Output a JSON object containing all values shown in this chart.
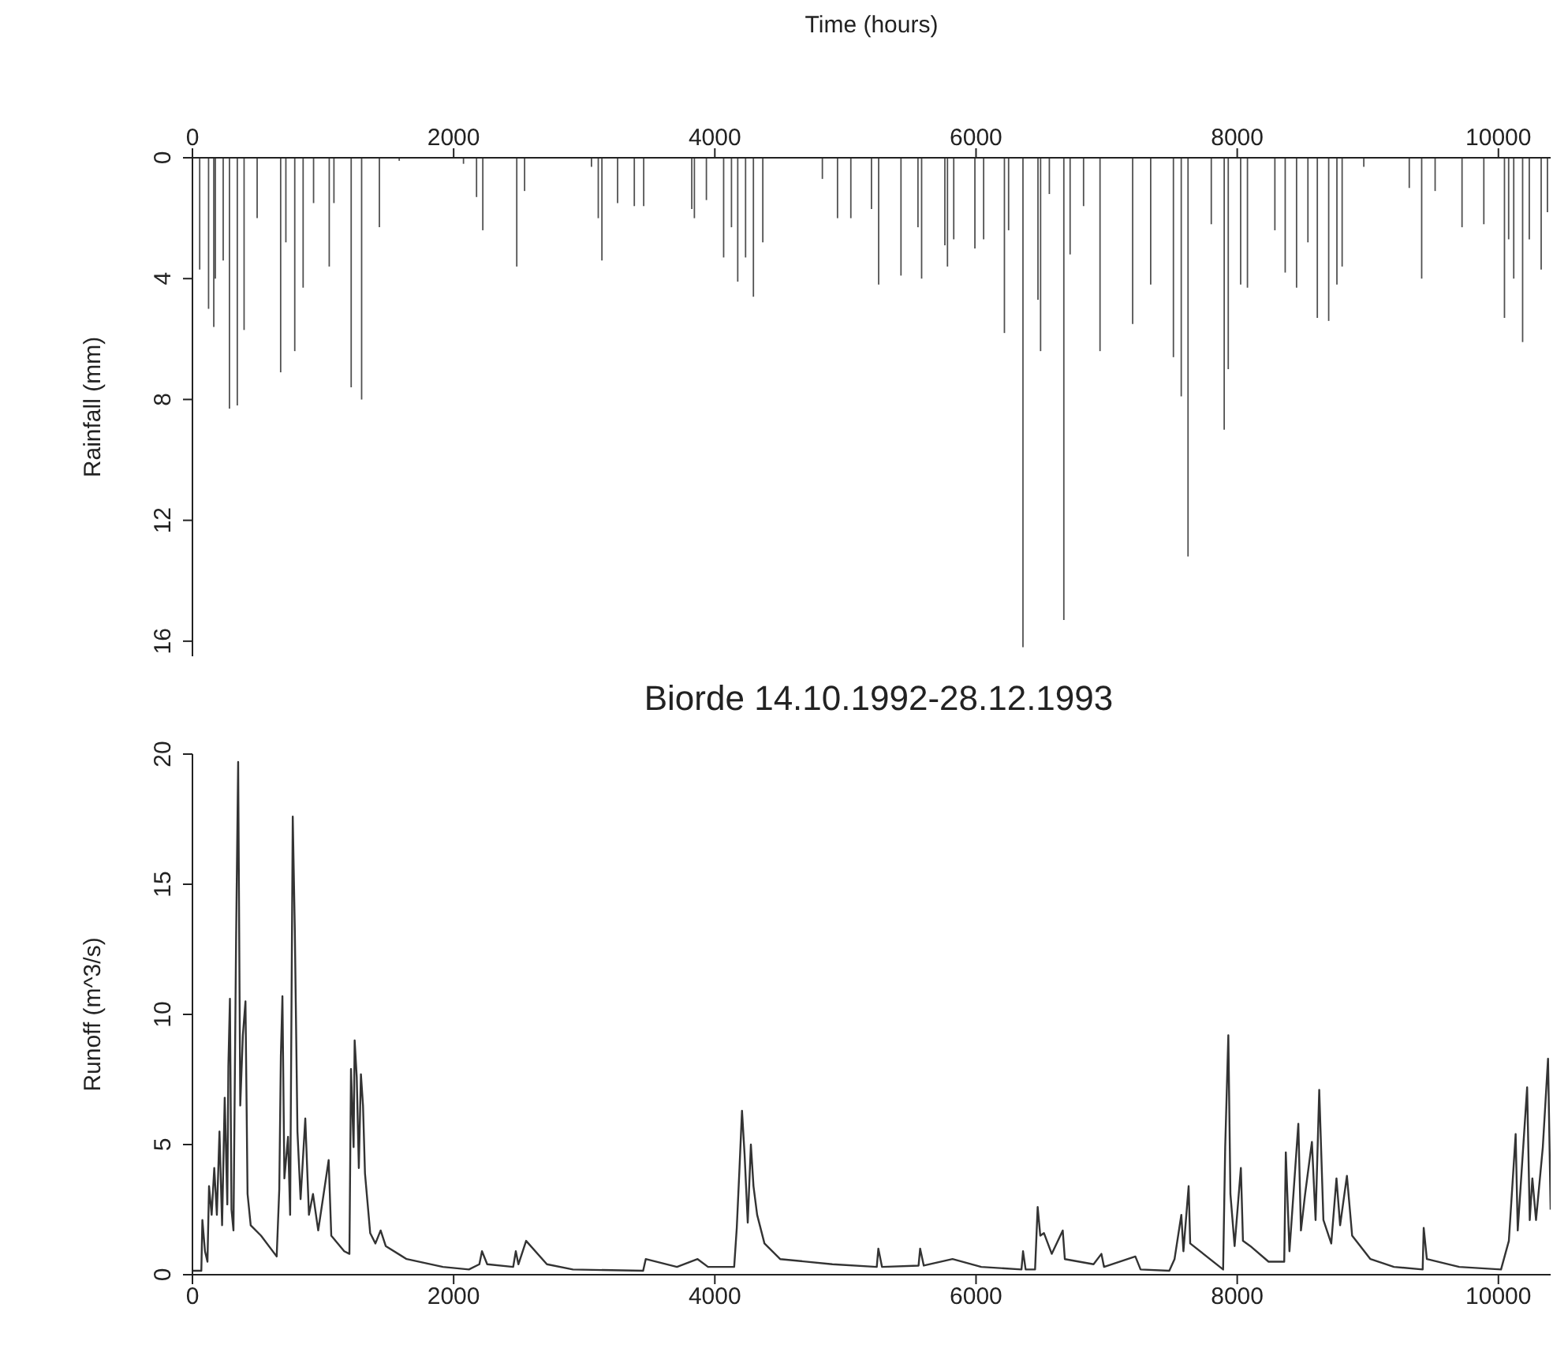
{
  "chart_data": [
    {
      "type": "bar",
      "xlabel": "Time (hours)",
      "ylabel": "Rainfall (mm)",
      "color": "#505050",
      "xlim": [
        0,
        10400
      ],
      "xticks": [
        0,
        2000,
        4000,
        6000,
        8000,
        10000
      ],
      "ylim": [
        16.5,
        0
      ],
      "yticks": [
        0,
        4,
        8,
        12,
        16
      ],
      "x": [
        56,
        124,
        164,
        176,
        236,
        284,
        344,
        396,
        496,
        676,
        716,
        784,
        848,
        928,
        1048,
        1084,
        1216,
        1296,
        1432,
        1584,
        2076,
        2176,
        2224,
        2484,
        2544,
        3056,
        3108,
        3136,
        3256,
        3384,
        3456,
        3824,
        3844,
        3936,
        4068,
        4128,
        4176,
        4236,
        4296,
        4368,
        4824,
        4940,
        5042,
        5200,
        5255,
        5426,
        5556,
        5584,
        5762,
        5782,
        5830,
        5992,
        6059,
        6218,
        6250,
        6360,
        6475,
        6495,
        6562,
        6673,
        6721,
        6824,
        6950,
        7200,
        7338,
        7512,
        7572,
        7624,
        7802,
        7901,
        7932,
        8027,
        8079,
        8289,
        8368,
        8455,
        8542,
        8614,
        8701,
        8764,
        8804,
        8970,
        9318,
        9413,
        9516,
        9722,
        9889,
        10047,
        10079,
        10118,
        10186,
        10237,
        10328,
        10376
      ],
      "values": [
        3.7,
        5.0,
        5.6,
        4.0,
        3.4,
        8.3,
        8.2,
        5.7,
        2.0,
        7.1,
        2.8,
        6.4,
        4.3,
        1.5,
        3.6,
        1.5,
        7.6,
        8.0,
        2.3,
        0.1,
        0.2,
        1.3,
        2.4,
        3.6,
        1.1,
        0.3,
        2.0,
        3.4,
        1.5,
        1.6,
        1.6,
        1.7,
        2.0,
        1.4,
        3.3,
        2.3,
        4.1,
        3.3,
        4.6,
        2.8,
        0.7,
        2.0,
        2.0,
        1.7,
        4.2,
        3.9,
        2.3,
        4.0,
        2.9,
        3.6,
        2.7,
        3.0,
        2.7,
        5.8,
        2.4,
        16.2,
        4.7,
        6.4,
        1.2,
        15.3,
        3.2,
        1.6,
        6.4,
        5.5,
        4.2,
        6.6,
        7.9,
        13.2,
        2.2,
        9.0,
        7.0,
        4.2,
        4.3,
        2.4,
        3.8,
        4.3,
        2.8,
        5.3,
        5.4,
        4.2,
        3.6,
        0.3,
        1.0,
        4.0,
        1.1,
        2.3,
        2.2,
        5.3,
        2.7,
        4.0,
        6.1,
        2.7,
        3.7,
        1.8
      ]
    },
    {
      "type": "line",
      "title": "Biorde 14.10.1992-28.12.1993",
      "ylabel": "Runoff (m^3/s)",
      "color": "#333333",
      "xlim": [
        0,
        10400
      ],
      "xticks": [
        0,
        2000,
        4000,
        6000,
        8000,
        10000
      ],
      "ylim": [
        0,
        20
      ],
      "yticks": [
        0,
        5,
        10,
        15,
        20
      ],
      "x": [
        0,
        68,
        76,
        96,
        115,
        127,
        147,
        167,
        187,
        207,
        227,
        247,
        267,
        275,
        287,
        299,
        314,
        334,
        350,
        366,
        386,
        406,
        422,
        446,
        525,
        645,
        665,
        677,
        689,
        704,
        732,
        748,
        768,
        784,
        804,
        828,
        864,
        892,
        923,
        963,
        1043,
        1063,
        1162,
        1202,
        1214,
        1234,
        1242,
        1258,
        1274,
        1290,
        1306,
        1321,
        1361,
        1401,
        1441,
        1480,
        1640,
        1918,
        2117,
        2197,
        2217,
        2257,
        2456,
        2476,
        2496,
        2555,
        2714,
        2913,
        3451,
        3471,
        3710,
        3868,
        3948,
        4148,
        4168,
        4188,
        4208,
        4228,
        4252,
        4276,
        4296,
        4324,
        4380,
        4500,
        4900,
        5240,
        5252,
        5280,
        5560,
        5572,
        5600,
        5820,
        6040,
        6348,
        6360,
        6380,
        6452,
        6472,
        6492,
        6520,
        6580,
        6664,
        6680,
        6900,
        6960,
        6980,
        7220,
        7260,
        7480,
        7520,
        7572,
        7588,
        7628,
        7640,
        7892,
        7908,
        7932,
        7948,
        7980,
        8028,
        8044,
        8100,
        8240,
        8360,
        8372,
        8400,
        8468,
        8488,
        8520,
        8572,
        8600,
        8628,
        8660,
        8720,
        8760,
        8788,
        8840,
        8880,
        9020,
        9200,
        9420,
        9428,
        9452,
        9700,
        10020,
        10080,
        10132,
        10148,
        10220,
        10240,
        10260,
        10288,
        10340,
        10380,
        10400
      ],
      "values": [
        0.15,
        0.15,
        2.1,
        0.9,
        0.5,
        3.4,
        2.3,
        4.1,
        2.3,
        5.5,
        1.9,
        6.8,
        2.7,
        8.0,
        10.6,
        2.5,
        1.7,
        12.8,
        19.7,
        6.5,
        9.2,
        10.5,
        3.1,
        1.9,
        1.5,
        0.7,
        3.3,
        8.4,
        10.7,
        3.7,
        5.3,
        2.3,
        17.6,
        13.2,
        5.5,
        2.9,
        6.0,
        2.3,
        3.1,
        1.7,
        4.4,
        1.5,
        0.9,
        0.8,
        7.9,
        4.9,
        9.0,
        7.6,
        4.1,
        7.7,
        6.5,
        3.9,
        1.6,
        1.2,
        1.7,
        1.1,
        0.6,
        0.3,
        0.2,
        0.4,
        0.9,
        0.4,
        0.3,
        0.9,
        0.4,
        1.3,
        0.4,
        0.2,
        0.15,
        0.6,
        0.3,
        0.6,
        0.3,
        0.3,
        1.8,
        4.0,
        6.3,
        4.6,
        2.0,
        5.0,
        3.4,
        2.3,
        1.2,
        0.6,
        0.4,
        0.3,
        1.0,
        0.3,
        0.35,
        1.0,
        0.35,
        0.6,
        0.3,
        0.2,
        0.9,
        0.2,
        0.2,
        2.6,
        1.5,
        1.6,
        0.8,
        1.7,
        0.6,
        0.4,
        0.8,
        0.3,
        0.7,
        0.2,
        0.15,
        0.6,
        2.3,
        0.9,
        3.4,
        1.2,
        0.2,
        4.9,
        9.2,
        3.1,
        1.1,
        4.1,
        1.3,
        1.1,
        0.5,
        0.5,
        4.7,
        0.9,
        5.8,
        1.7,
        3.1,
        5.1,
        2.1,
        7.1,
        2.1,
        1.2,
        3.7,
        1.9,
        3.8,
        1.5,
        0.6,
        0.3,
        0.2,
        1.8,
        0.6,
        0.3,
        0.2,
        1.3,
        5.4,
        1.7,
        7.2,
        2.1,
        3.7,
        2.1,
        4.9,
        8.3,
        2.5
      ]
    }
  ]
}
